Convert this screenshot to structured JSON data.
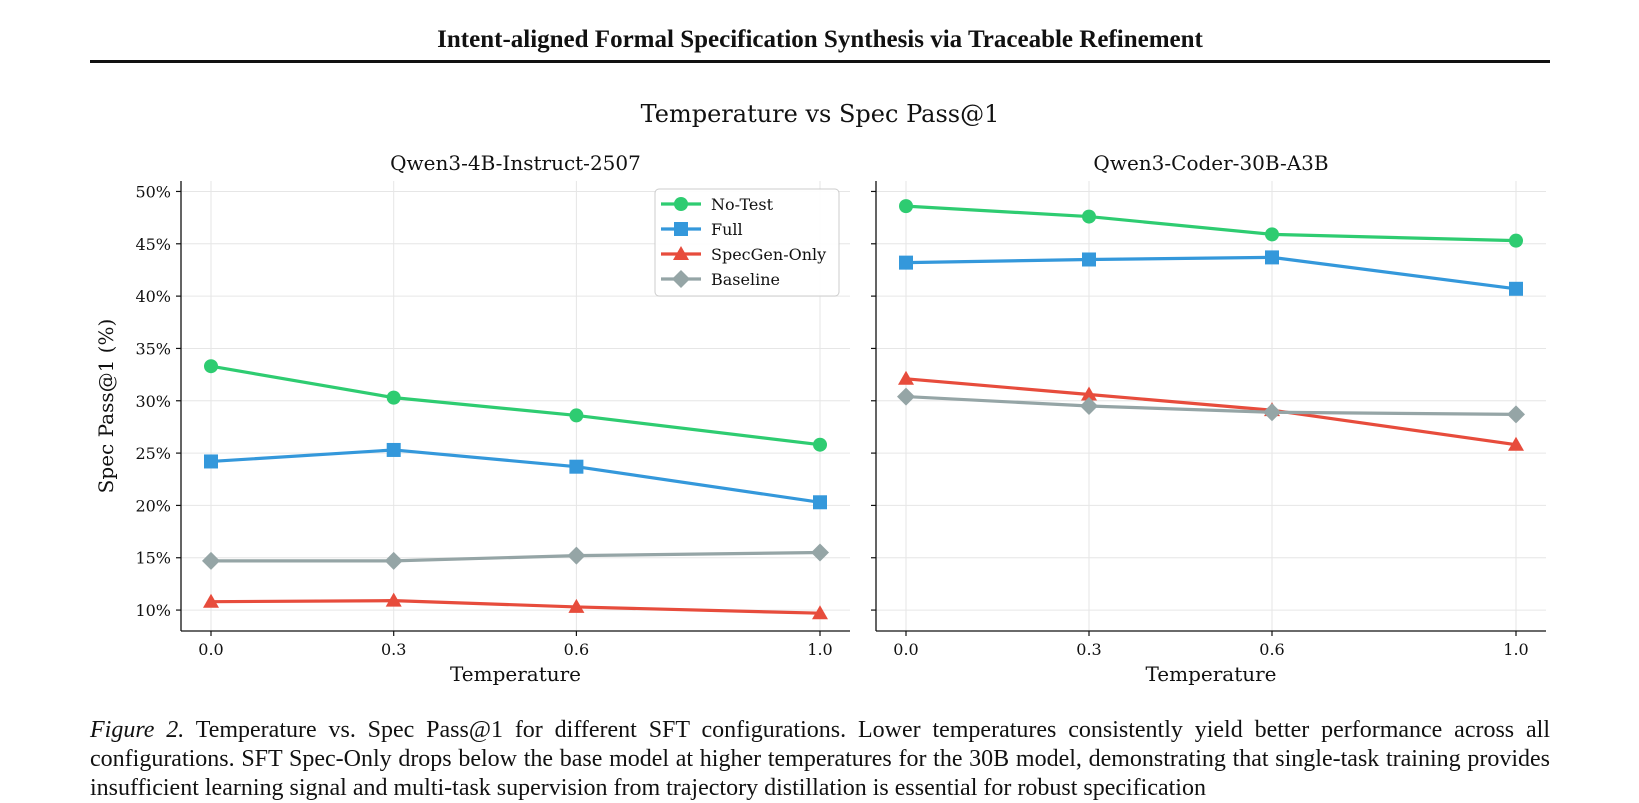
{
  "paper": {
    "header": "Intent-aligned Formal Specification Synthesis via Traceable Refinement"
  },
  "figure": {
    "suptitle": "Temperature vs Spec Pass@1"
  },
  "caption": {
    "label": "Figure 2.",
    "text": "Temperature vs. Spec Pass@1 for different SFT configurations. Lower temperatures consistently yield better performance across all configurations. SFT Spec-Only drops below the base model at higher temperatures for the 30B model, demonstrating that single-task training provides insufficient learning signal and multi-task supervision from trajectory distillation is essential for robust specification"
  },
  "chart_data": [
    {
      "type": "line",
      "title": "Qwen3-4B-Instruct-2507",
      "xlabel": "Temperature",
      "ylabel": "Spec Pass@1 (%)",
      "x": [
        0.0,
        0.3,
        0.6,
        1.0
      ],
      "x_tick_labels": [
        "0.0",
        "0.3",
        "0.6",
        "1.0"
      ],
      "ylim": [
        8,
        51
      ],
      "y_ticks": [
        10,
        15,
        20,
        25,
        30,
        35,
        40,
        45,
        50
      ],
      "y_tick_labels": [
        "10%",
        "15%",
        "20%",
        "25%",
        "30%",
        "35%",
        "40%",
        "45%",
        "50%"
      ],
      "grid": true,
      "legend_position": "top-right",
      "series": [
        {
          "name": "No-Test",
          "color": "#2ecc71",
          "marker": "circle",
          "values": [
            33.3,
            30.3,
            28.6,
            25.8
          ]
        },
        {
          "name": "Full",
          "color": "#3498db",
          "marker": "square",
          "values": [
            24.2,
            25.3,
            23.7,
            20.3
          ]
        },
        {
          "name": "SpecGen-Only",
          "color": "#e74c3c",
          "marker": "triangle",
          "values": [
            10.8,
            10.9,
            10.3,
            9.7
          ]
        },
        {
          "name": "Baseline",
          "color": "#95a5a6",
          "marker": "diamond",
          "values": [
            14.7,
            14.7,
            15.2,
            15.5
          ]
        }
      ]
    },
    {
      "type": "line",
      "title": "Qwen3-Coder-30B-A3B",
      "xlabel": "Temperature",
      "ylabel": "",
      "x": [
        0.0,
        0.3,
        0.6,
        1.0
      ],
      "x_tick_labels": [
        "0.0",
        "0.3",
        "0.6",
        "1.0"
      ],
      "ylim": [
        8,
        51
      ],
      "y_ticks": [
        10,
        15,
        20,
        25,
        30,
        35,
        40,
        45,
        50
      ],
      "y_tick_labels": [],
      "grid": true,
      "series": [
        {
          "name": "No-Test",
          "color": "#2ecc71",
          "marker": "circle",
          "values": [
            48.6,
            47.6,
            45.9,
            45.3
          ]
        },
        {
          "name": "Full",
          "color": "#3498db",
          "marker": "square",
          "values": [
            43.2,
            43.5,
            43.7,
            40.7
          ]
        },
        {
          "name": "SpecGen-Only",
          "color": "#e74c3c",
          "marker": "triangle",
          "values": [
            32.1,
            30.6,
            29.1,
            25.8
          ]
        },
        {
          "name": "Baseline",
          "color": "#95a5a6",
          "marker": "diamond",
          "values": [
            30.4,
            29.5,
            28.9,
            28.7
          ]
        }
      ]
    }
  ]
}
